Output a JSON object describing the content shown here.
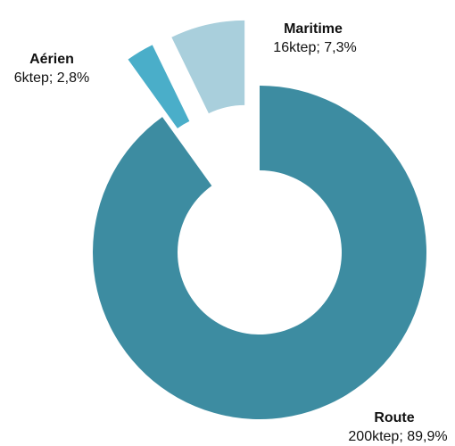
{
  "chart_data": {
    "type": "pie",
    "variant": "exploded-donut",
    "grid": false,
    "legend": "none",
    "slices": [
      {
        "name": "Route",
        "value": 200,
        "value_label": "200ktep; 89,9%",
        "percent": 89.9,
        "color": "#3d8ca1",
        "exploded": false
      },
      {
        "name": "Aérien",
        "value": 6,
        "value_label": "6ktep; 2,8%",
        "percent": 2.8,
        "color": "#4aaec9",
        "exploded": true
      },
      {
        "name": "Maritime",
        "value": 16,
        "value_label": "16ktep; 7,3%",
        "percent": 7.3,
        "color": "#a9cfdc",
        "exploded": true
      }
    ]
  }
}
